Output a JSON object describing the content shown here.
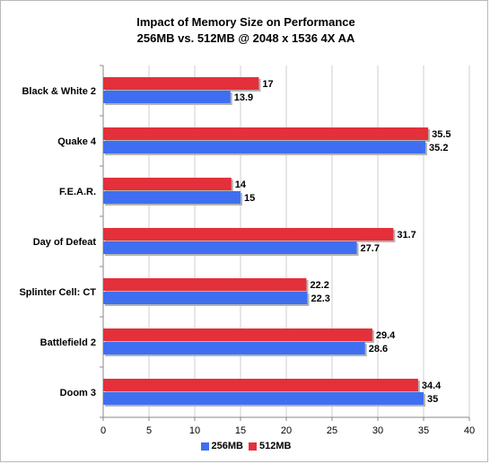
{
  "chart_data": {
    "type": "bar",
    "orientation": "horizontal",
    "title": "Impact of Memory Size on Performance",
    "subtitle": "256MB vs. 512MB @ 2048 x 1536 4X AA",
    "categories": [
      "Black & White 2",
      "Quake 4",
      "F.E.A.R.",
      "Day of Defeat",
      "Splinter Cell: CT",
      "Battlefield 2",
      "Doom 3"
    ],
    "series": [
      {
        "name": "512MB",
        "color": "#e3303a",
        "values": [
          17,
          35.5,
          14,
          31.7,
          22.2,
          29.4,
          34.4
        ]
      },
      {
        "name": "256MB",
        "color": "#3f6ff0",
        "values": [
          13.9,
          35.2,
          15,
          27.7,
          22.3,
          28.6,
          35
        ]
      }
    ],
    "value_labels": {
      "512MB": [
        "17",
        "35.5",
        "14",
        "31.7",
        "22.2",
        "29.4",
        "34.4"
      ],
      "256MB": [
        "13.9",
        "35.2",
        "15",
        "27.7",
        "22.3",
        "28.6",
        "35"
      ]
    },
    "xlim": [
      0,
      40
    ],
    "xticks": [
      "0",
      "5",
      "10",
      "15",
      "20",
      "25",
      "30",
      "35",
      "40"
    ],
    "xlabel": "",
    "ylabel": "",
    "grid": "vertical",
    "legend_position": "bottom",
    "legend": [
      {
        "name": "256MB",
        "color": "#3f6ff0"
      },
      {
        "name": "512MB",
        "color": "#e3303a"
      }
    ]
  }
}
